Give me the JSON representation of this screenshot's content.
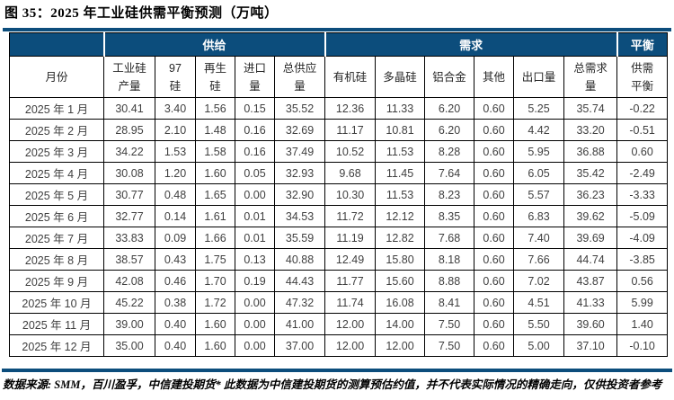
{
  "title": "图 35：2025 年工业硅供需平衡预测（万吨）",
  "colors": {
    "header_bg": "#0c4d7c",
    "rule": "#0c4d7c",
    "border": "#000000",
    "header_text": "#ffffff",
    "body_text": "#3f3f3f"
  },
  "table": {
    "groups": [
      {
        "label": ""
      },
      {
        "label": "供给"
      },
      {
        "label": "需求"
      },
      {
        "label": "平衡"
      }
    ],
    "columns": [
      "月份",
      "工业硅\n产量",
      "97\n硅",
      "再生\n硅",
      "进口\n量",
      "总供应\n量",
      "有机硅",
      "多晶硅",
      "铝合金",
      "其他",
      "出口量",
      "总需求\n量",
      "供需\n平衡"
    ],
    "rows": [
      [
        "2025 年 1 月",
        "30.41",
        "3.40",
        "1.56",
        "0.15",
        "35.52",
        "12.36",
        "11.33",
        "6.20",
        "0.60",
        "5.25",
        "35.74",
        "-0.22"
      ],
      [
        "2025 年 2 月",
        "28.95",
        "2.10",
        "1.48",
        "0.16",
        "32.69",
        "11.17",
        "10.81",
        "6.20",
        "0.60",
        "4.42",
        "33.20",
        "-0.51"
      ],
      [
        "2025 年 3 月",
        "34.22",
        "1.53",
        "1.58",
        "0.16",
        "37.49",
        "10.52",
        "11.53",
        "8.28",
        "0.60",
        "5.95",
        "36.88",
        "0.60"
      ],
      [
        "2025 年 4 月",
        "30.08",
        "1.20",
        "1.60",
        "0.05",
        "32.93",
        "9.68",
        "11.45",
        "7.64",
        "0.60",
        "6.05",
        "35.42",
        "-2.49"
      ],
      [
        "2025 年 5 月",
        "30.77",
        "0.48",
        "1.65",
        "0.00",
        "32.90",
        "10.30",
        "11.53",
        "8.23",
        "0.60",
        "5.57",
        "36.23",
        "-3.33"
      ],
      [
        "2025 年 6 月",
        "32.77",
        "0.14",
        "1.61",
        "0.01",
        "34.53",
        "11.72",
        "12.12",
        "8.35",
        "0.60",
        "6.83",
        "39.62",
        "-5.09"
      ],
      [
        "2025 年 7 月",
        "33.83",
        "0.09",
        "1.66",
        "0.01",
        "35.59",
        "11.19",
        "12.82",
        "7.68",
        "0.60",
        "7.40",
        "39.69",
        "-4.09"
      ],
      [
        "2025 年 8 月",
        "38.57",
        "0.43",
        "1.75",
        "0.13",
        "40.88",
        "12.49",
        "15.80",
        "8.18",
        "0.60",
        "7.66",
        "44.74",
        "-3.85"
      ],
      [
        "2025 年 9 月",
        "42.08",
        "0.46",
        "1.70",
        "0.19",
        "44.43",
        "11.77",
        "15.60",
        "8.88",
        "0.60",
        "7.02",
        "43.87",
        "0.56"
      ],
      [
        "2025 年 10 月",
        "45.22",
        "0.38",
        "1.72",
        "0.00",
        "47.32",
        "11.74",
        "16.08",
        "8.41",
        "0.60",
        "4.51",
        "41.33",
        "5.99"
      ],
      [
        "2025 年 11 月",
        "39.00",
        "0.40",
        "1.60",
        "0.00",
        "41.00",
        "12.00",
        "14.00",
        "7.50",
        "0.60",
        "5.50",
        "39.60",
        "1.40"
      ],
      [
        "2025 年 12 月",
        "35.00",
        "0.40",
        "1.60",
        "0.00",
        "37.00",
        "12.00",
        "12.00",
        "7.50",
        "0.60",
        "5.00",
        "37.10",
        "-0.10"
      ]
    ]
  },
  "footer": {
    "text": "数据来源: SMM，百川盈孚，中信建投期货* 此数据为中信建投期货的测算预估约值，并不代表实际情况的精确走向，仅供投资者参考"
  }
}
